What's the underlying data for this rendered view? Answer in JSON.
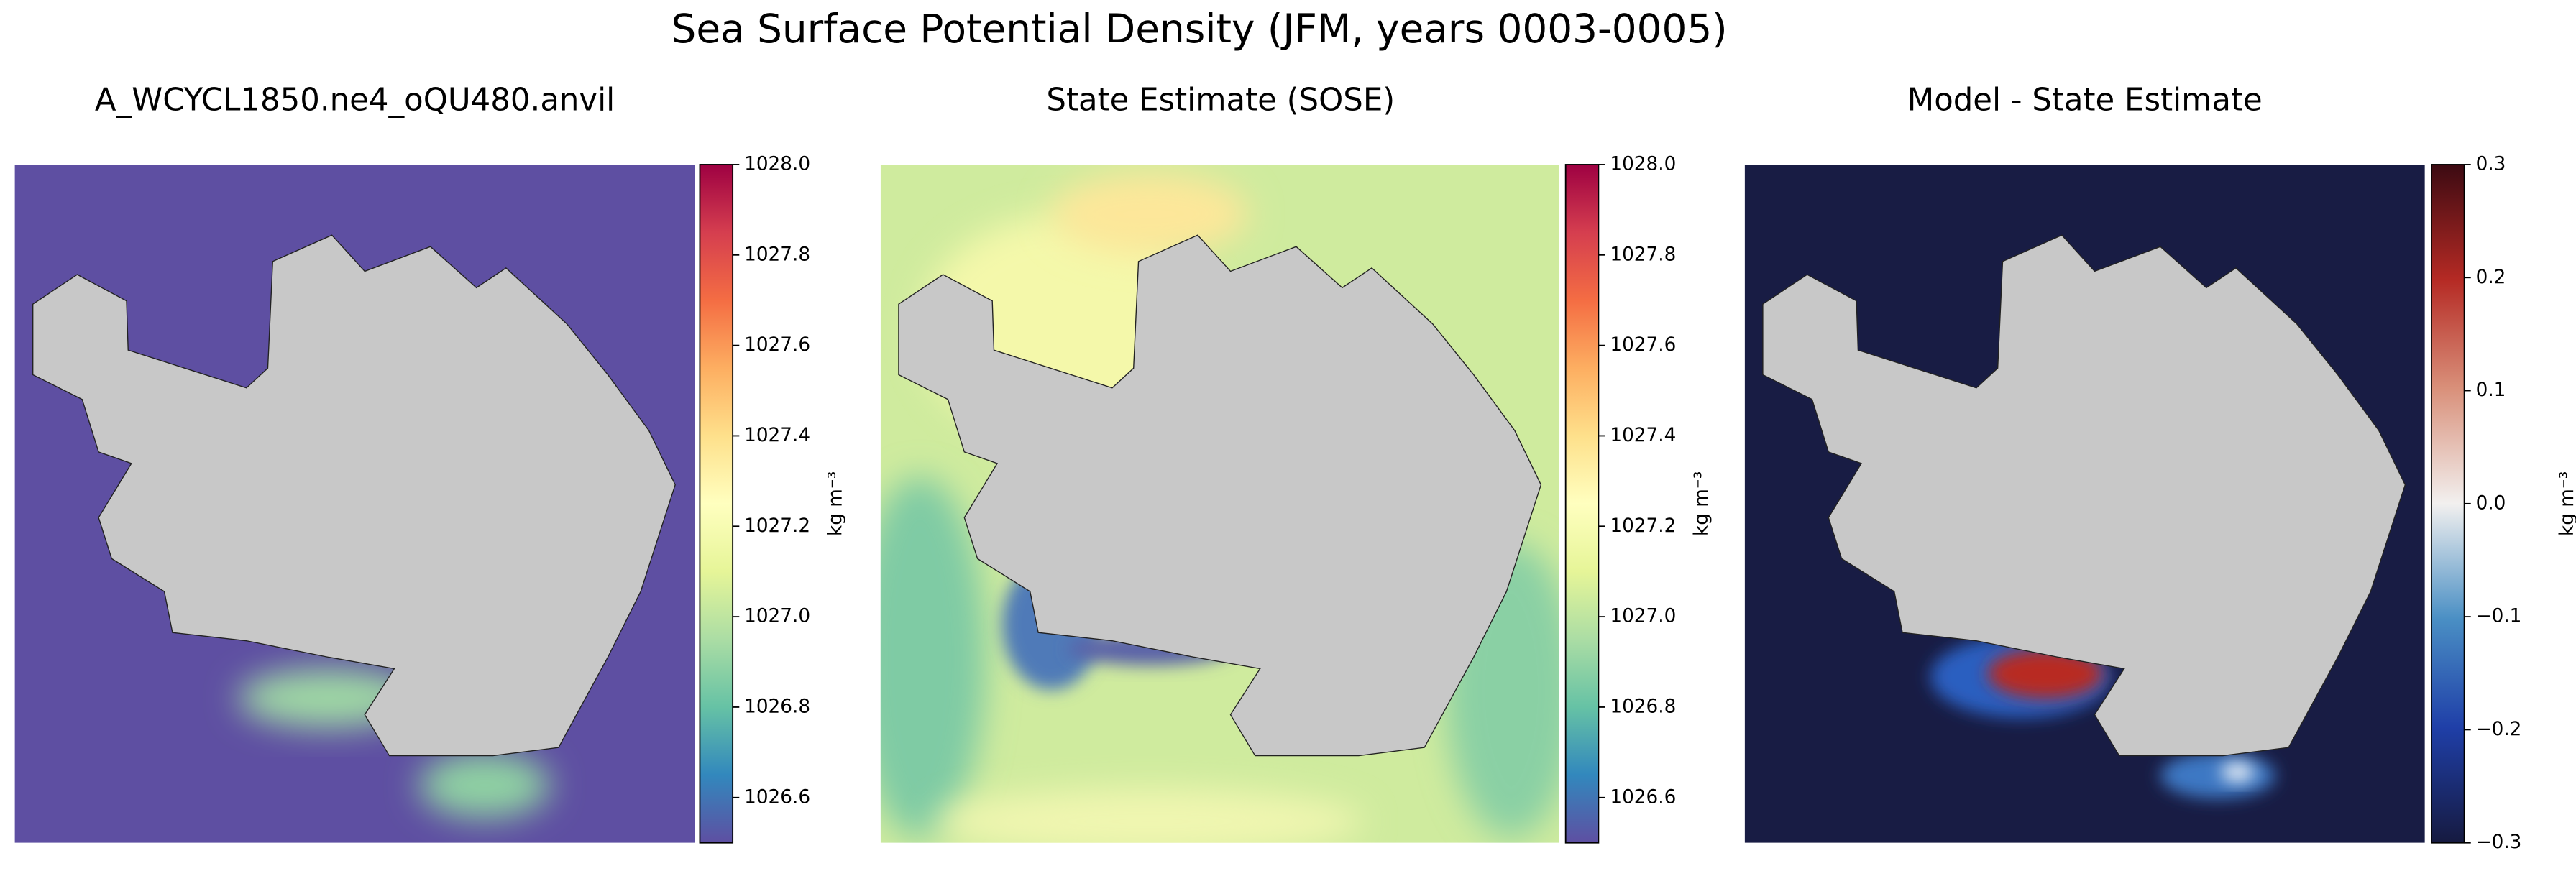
{
  "title": "Sea Surface Potential Density (JFM, years 0003-0005)",
  "chart_data": [
    {
      "type": "map",
      "title": "A_WCYCL1850.ne4_oQU480.anvil",
      "colorbar_label": "kg m⁻³",
      "colormap": "Spectral_r",
      "ylim": [
        1026.5,
        1028.0
      ],
      "yticks": [
        1026.6,
        1026.8,
        {
          "value": 1027.0,
          "label": "1027.0"
        },
        1027.2,
        1027.4,
        1027.6,
        1027.8,
        {
          "value": 1028.0,
          "label": "1028.0"
        }
      ]
    },
    {
      "type": "map",
      "title": "State Estimate (SOSE)",
      "colorbar_label": "kg m⁻³",
      "colormap": "Spectral_r",
      "ylim": [
        1026.5,
        1028.0
      ],
      "yticks": [
        1026.6,
        1026.8,
        {
          "value": 1027.0,
          "label": "1027.0"
        },
        1027.2,
        1027.4,
        1027.6,
        1027.8,
        {
          "value": 1028.0,
          "label": "1028.0"
        }
      ]
    },
    {
      "type": "map",
      "title": "Model - State Estimate",
      "colorbar_label": "kg m⁻³",
      "colormap": "RdBu_r",
      "ylim": [
        -0.3,
        0.3
      ],
      "yticks": [
        {
          "value": -0.3,
          "label": "−0.3"
        },
        {
          "value": -0.2,
          "label": "−0.2"
        },
        {
          "value": -0.1,
          "label": "−0.1"
        },
        {
          "value": 0.0,
          "label": "0.0"
        },
        0.1,
        0.2,
        0.3
      ]
    }
  ]
}
